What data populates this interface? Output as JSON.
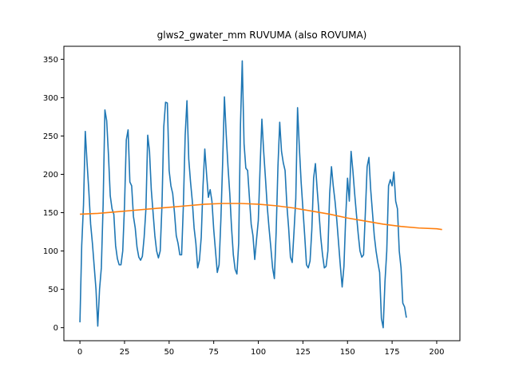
{
  "chart_data": {
    "type": "line",
    "title": "glws2_gwater_mm RUVUMA (also ROVUMA)",
    "xlabel": "",
    "ylabel": "",
    "xlim": [
      -9,
      213
    ],
    "ylim": [
      -17,
      367
    ],
    "xticks": [
      0,
      25,
      50,
      75,
      100,
      125,
      150,
      175,
      200
    ],
    "yticks": [
      0,
      50,
      100,
      150,
      200,
      250,
      300,
      350
    ],
    "grid": false,
    "series": [
      {
        "color": "#1f77b4",
        "points": [
          [
            0,
            7
          ],
          [
            1,
            107
          ],
          [
            2,
            160
          ],
          [
            3,
            256
          ],
          [
            4,
            215
          ],
          [
            5,
            178
          ],
          [
            6,
            135
          ],
          [
            7,
            110
          ],
          [
            8,
            80
          ],
          [
            9,
            50
          ],
          [
            10,
            2
          ],
          [
            11,
            50
          ],
          [
            12,
            78
          ],
          [
            13,
            160
          ],
          [
            14,
            284
          ],
          [
            15,
            270
          ],
          [
            16,
            225
          ],
          [
            17,
            172
          ],
          [
            18,
            155
          ],
          [
            19,
            148
          ],
          [
            20,
            107
          ],
          [
            21,
            90
          ],
          [
            22,
            82
          ],
          [
            23,
            82
          ],
          [
            24,
            100
          ],
          [
            25,
            160
          ],
          [
            26,
            245
          ],
          [
            27,
            258
          ],
          [
            28,
            190
          ],
          [
            29,
            185
          ],
          [
            30,
            145
          ],
          [
            31,
            130
          ],
          [
            32,
            105
          ],
          [
            33,
            92
          ],
          [
            34,
            88
          ],
          [
            35,
            93
          ],
          [
            36,
            118
          ],
          [
            37,
            155
          ],
          [
            38,
            251
          ],
          [
            39,
            230
          ],
          [
            40,
            180
          ],
          [
            41,
            150
          ],
          [
            42,
            120
          ],
          [
            43,
            100
          ],
          [
            44,
            91
          ],
          [
            45,
            100
          ],
          [
            46,
            160
          ],
          [
            47,
            262
          ],
          [
            48,
            294
          ],
          [
            49,
            293
          ],
          [
            50,
            205
          ],
          [
            51,
            185
          ],
          [
            52,
            175
          ],
          [
            53,
            150
          ],
          [
            54,
            120
          ],
          [
            55,
            110
          ],
          [
            56,
            95
          ],
          [
            57,
            95
          ],
          [
            58,
            160
          ],
          [
            59,
            251
          ],
          [
            60,
            296
          ],
          [
            61,
            220
          ],
          [
            62,
            190
          ],
          [
            63,
            165
          ],
          [
            64,
            130
          ],
          [
            65,
            110
          ],
          [
            66,
            78
          ],
          [
            67,
            88
          ],
          [
            68,
            118
          ],
          [
            69,
            185
          ],
          [
            70,
            233
          ],
          [
            71,
            200
          ],
          [
            72,
            170
          ],
          [
            73,
            180
          ],
          [
            74,
            165
          ],
          [
            75,
            128
          ],
          [
            76,
            100
          ],
          [
            77,
            72
          ],
          [
            78,
            82
          ],
          [
            79,
            140
          ],
          [
            80,
            215
          ],
          [
            81,
            301
          ],
          [
            82,
            252
          ],
          [
            83,
            210
          ],
          [
            84,
            175
          ],
          [
            85,
            130
          ],
          [
            86,
            95
          ],
          [
            87,
            76
          ],
          [
            88,
            70
          ],
          [
            89,
            110
          ],
          [
            90,
            265
          ],
          [
            91,
            348
          ],
          [
            92,
            240
          ],
          [
            93,
            208
          ],
          [
            94,
            205
          ],
          [
            95,
            170
          ],
          [
            96,
            135
          ],
          [
            97,
            120
          ],
          [
            98,
            89
          ],
          [
            99,
            115
          ],
          [
            100,
            140
          ],
          [
            101,
            210
          ],
          [
            102,
            272
          ],
          [
            103,
            230
          ],
          [
            104,
            195
          ],
          [
            105,
            158
          ],
          [
            106,
            130
          ],
          [
            107,
            105
          ],
          [
            108,
            78
          ],
          [
            109,
            64
          ],
          [
            110,
            125
          ],
          [
            111,
            210
          ],
          [
            112,
            268
          ],
          [
            113,
            230
          ],
          [
            114,
            215
          ],
          [
            115,
            205
          ],
          [
            116,
            160
          ],
          [
            117,
            130
          ],
          [
            118,
            92
          ],
          [
            119,
            85
          ],
          [
            120,
            125
          ],
          [
            121,
            168
          ],
          [
            122,
            287
          ],
          [
            123,
            235
          ],
          [
            124,
            190
          ],
          [
            125,
            155
          ],
          [
            126,
            120
          ],
          [
            127,
            82
          ],
          [
            128,
            78
          ],
          [
            129,
            87
          ],
          [
            130,
            128
          ],
          [
            131,
            195
          ],
          [
            132,
            214
          ],
          [
            133,
            180
          ],
          [
            134,
            150
          ],
          [
            135,
            118
          ],
          [
            136,
            95
          ],
          [
            137,
            78
          ],
          [
            138,
            80
          ],
          [
            139,
            100
          ],
          [
            140,
            175
          ],
          [
            141,
            210
          ],
          [
            142,
            185
          ],
          [
            143,
            165
          ],
          [
            144,
            140
          ],
          [
            145,
            110
          ],
          [
            146,
            80
          ],
          [
            147,
            53
          ],
          [
            148,
            80
          ],
          [
            149,
            145
          ],
          [
            150,
            195
          ],
          [
            151,
            165
          ],
          [
            152,
            230
          ],
          [
            153,
            205
          ],
          [
            154,
            175
          ],
          [
            155,
            148
          ],
          [
            156,
            122
          ],
          [
            157,
            100
          ],
          [
            158,
            92
          ],
          [
            159,
            95
          ],
          [
            160,
            150
          ],
          [
            161,
            210
          ],
          [
            162,
            222
          ],
          [
            163,
            180
          ],
          [
            164,
            150
          ],
          [
            165,
            120
          ],
          [
            166,
            100
          ],
          [
            167,
            85
          ],
          [
            168,
            72
          ],
          [
            169,
            12
          ],
          [
            170,
            0
          ],
          [
            171,
            60
          ],
          [
            172,
            100
          ],
          [
            173,
            185
          ],
          [
            174,
            193
          ],
          [
            175,
            185
          ],
          [
            176,
            203
          ],
          [
            177,
            165
          ],
          [
            178,
            155
          ],
          [
            179,
            100
          ],
          [
            180,
            78
          ],
          [
            181,
            32
          ],
          [
            182,
            27
          ],
          [
            183,
            13
          ]
        ]
      },
      {
        "color": "#ff7f0e",
        "points": [
          [
            0,
            148
          ],
          [
            10,
            149
          ],
          [
            20,
            151
          ],
          [
            30,
            153
          ],
          [
            40,
            155
          ],
          [
            50,
            157
          ],
          [
            60,
            159
          ],
          [
            70,
            161
          ],
          [
            80,
            162
          ],
          [
            90,
            162
          ],
          [
            100,
            161
          ],
          [
            110,
            159
          ],
          [
            120,
            156
          ],
          [
            130,
            152
          ],
          [
            140,
            148
          ],
          [
            150,
            143
          ],
          [
            160,
            139
          ],
          [
            170,
            135
          ],
          [
            180,
            132
          ],
          [
            190,
            130
          ],
          [
            200,
            129
          ],
          [
            203,
            128
          ]
        ]
      }
    ]
  }
}
